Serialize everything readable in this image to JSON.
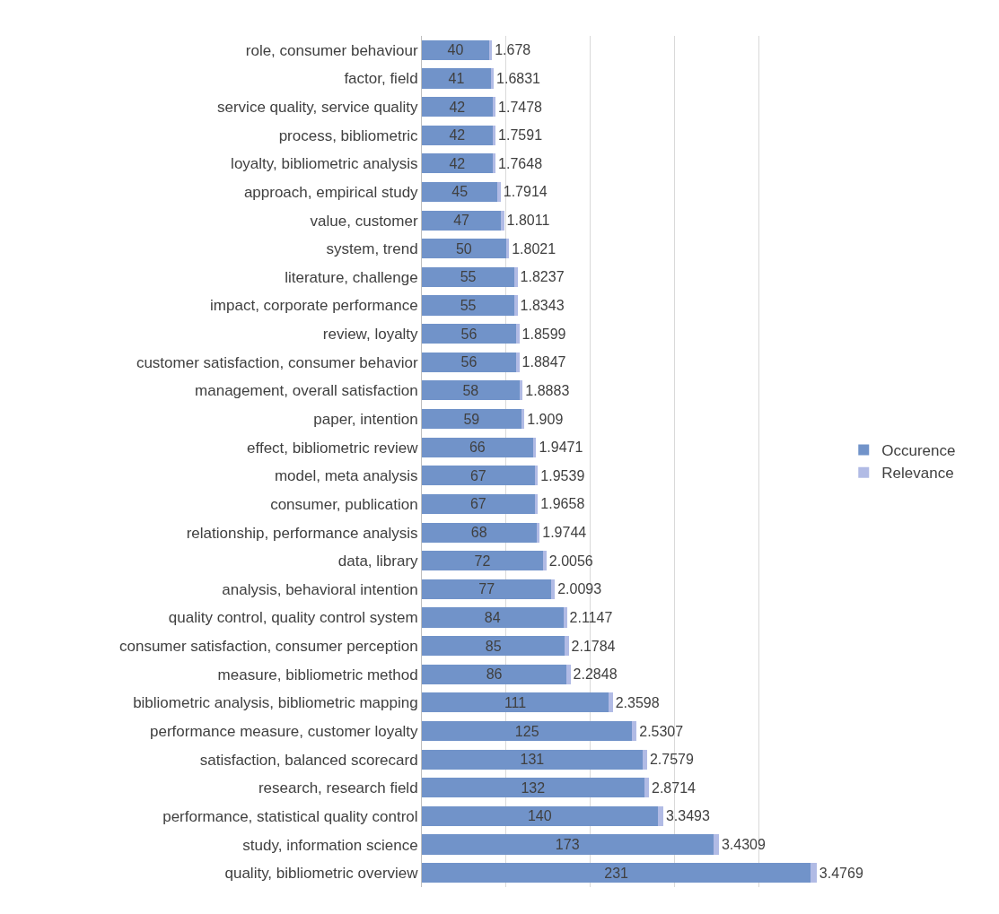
{
  "chart_data": {
    "type": "bar",
    "orientation": "horizontal",
    "stacked": true,
    "grid": "x",
    "legend": "right",
    "tick_labels": "y",
    "data_labels": true,
    "categories": [
      "role, consumer behaviour",
      "factor, field",
      "service quality, service quality",
      "process, bibliometric",
      "loyalty, bibliometric analysis",
      "approach, empirical study",
      "value, customer",
      "system, trend",
      "literature, challenge",
      "impact, corporate performance",
      "review, loyalty",
      "customer satisfaction, consumer behavior",
      "management, overall satisfaction",
      "paper, intention",
      "effect, bibliometric review",
      "model, meta analysis",
      "consumer, publication",
      "relationship, performance analysis",
      "data, library",
      "analysis, behavioral intention",
      "quality control, quality control system",
      "consumer satisfaction, consumer perception",
      "measure, bibliometric method",
      "bibliometric analysis, bibliometric mapping",
      "performance measure, customer loyalty",
      "satisfaction, balanced scorecard",
      "research, research field",
      "performance, statistical quality control",
      "study, information science",
      "quality, bibliometric overview"
    ],
    "series": [
      {
        "name": "Occurence",
        "color": "#7193c9",
        "values": [
          40,
          41,
          42,
          42,
          42,
          45,
          47,
          50,
          55,
          55,
          56,
          56,
          58,
          59,
          66,
          67,
          67,
          68,
          72,
          77,
          84,
          85,
          86,
          111,
          125,
          131,
          132,
          140,
          173,
          231
        ]
      },
      {
        "name": "Relevance",
        "color": "#b1bbe5",
        "values": [
          1.678,
          1.6831,
          1.7478,
          1.7591,
          1.7648,
          1.7914,
          1.8011,
          1.8021,
          1.8237,
          1.8343,
          1.8599,
          1.8847,
          1.8883,
          1.909,
          1.9471,
          1.9539,
          1.9658,
          1.9744,
          2.0056,
          2.0093,
          2.1147,
          2.1784,
          2.2848,
          2.3598,
          2.5307,
          2.7579,
          2.8714,
          3.3493,
          3.4309,
          3.4769
        ]
      }
    ]
  }
}
